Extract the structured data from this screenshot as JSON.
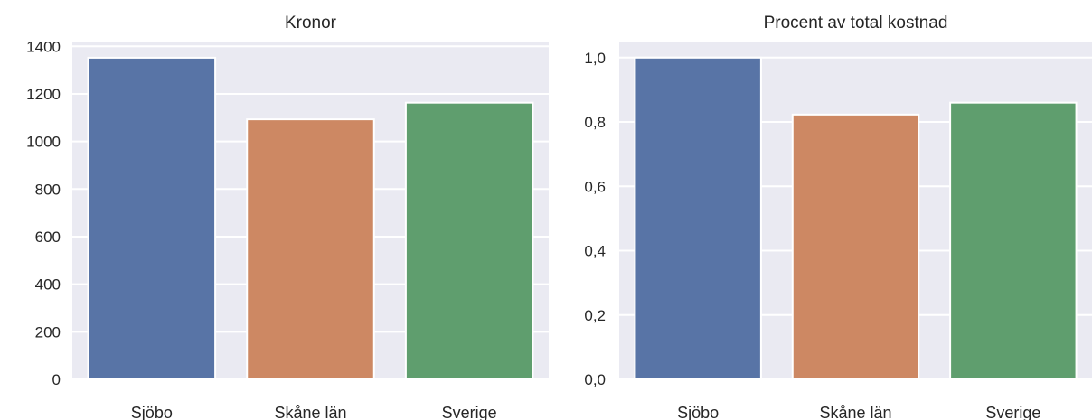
{
  "chart_data": [
    {
      "type": "bar",
      "title": "Kronor",
      "xlabel": "",
      "ylabel": "",
      "categories": [
        "Sjöbo",
        "Skåne län",
        "Sverige"
      ],
      "values": [
        1352,
        1093,
        1163
      ],
      "ylim": [
        0,
        1420
      ],
      "yticks": [
        0,
        200,
        400,
        600,
        800,
        1000,
        1200,
        1400
      ],
      "ytick_labels": [
        "0",
        "200",
        "400",
        "600",
        "800",
        "1000",
        "1200",
        "1400"
      ],
      "colors": [
        "#5874a6",
        "#cd8863",
        "#5f9e6e"
      ],
      "background": "#eaeaf2",
      "grid": true,
      "legend": "none"
    },
    {
      "type": "bar",
      "title": "Procent av total kostnad",
      "xlabel": "",
      "ylabel": "",
      "categories": [
        "Sjöbo",
        "Skåne län",
        "Sverige"
      ],
      "values": [
        1.0,
        0.823,
        0.86
      ],
      "ylim": [
        0,
        1.05
      ],
      "yticks": [
        0,
        0.2,
        0.4,
        0.6,
        0.8,
        1.0
      ],
      "ytick_labels": [
        "0,0",
        "0,2",
        "0,4",
        "0,6",
        "0,8",
        "1,0"
      ],
      "colors": [
        "#5874a6",
        "#cd8863",
        "#5f9e6e"
      ],
      "background": "#eaeaf2",
      "grid": true,
      "legend": "none"
    }
  ]
}
